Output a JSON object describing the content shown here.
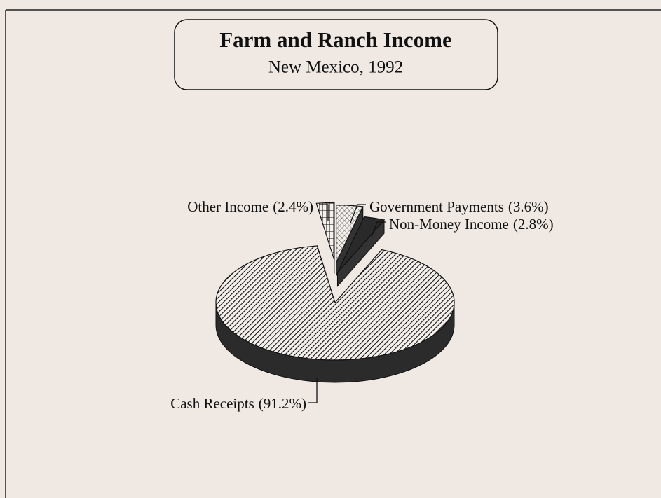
{
  "chart_data": {
    "type": "pie",
    "title": "Farm and Ranch Income",
    "subtitle": "New Mexico, 1992",
    "categories": [
      "Other Income",
      "Government Payments",
      "Non-Money Income",
      "Cash Receipts"
    ],
    "values": [
      2.4,
      3.6,
      2.8,
      91.2
    ],
    "value_labels": [
      "(2.4%)",
      "(3.6%)",
      "(2.8%)",
      "(91.2%)"
    ]
  }
}
